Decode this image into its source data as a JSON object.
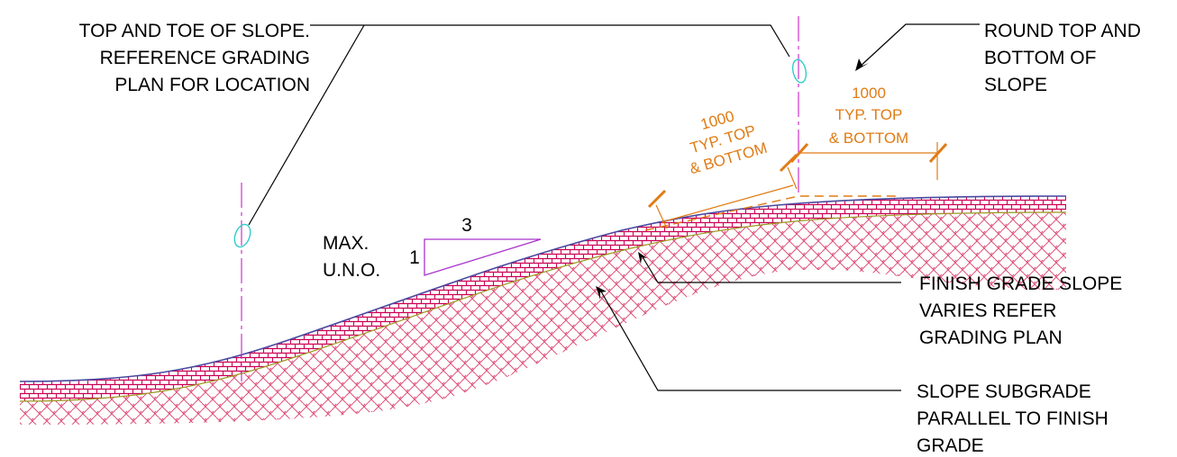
{
  "colors": {
    "text": "#000000",
    "dimension": "#e07b14",
    "centerline": "#cc33cc",
    "marker": "#33cccc",
    "hatch_fine": "#cc0055",
    "hatch_coarse": "#e0507a",
    "topsoil_edge": "#4a4aa0",
    "subgrade_edge": "#9a9a20"
  },
  "labels": {
    "top_toe": [
      "TOP AND TOE OF SLOPE.",
      "REFERENCE GRADING",
      "PLAN FOR LOCATION"
    ],
    "round_top": [
      "ROUND TOP AND",
      "BOTTOM OF",
      "SLOPE"
    ],
    "finish_grade": [
      "FINISH GRADE SLOPE",
      "VARIES REFER",
      "GRADING PLAN"
    ],
    "subgrade": [
      "SLOPE SUBGRADE",
      "PARALLEL TO FINISH",
      "GRADE"
    ],
    "max_uno": [
      "MAX.",
      "U.N.O."
    ]
  },
  "slope_ratio": {
    "run": "3",
    "rise": "1"
  },
  "dimensions": {
    "slope_dim": [
      "1000",
      "TYP. TOP",
      "& BOTTOM"
    ],
    "top_dim": [
      "1000",
      "TYP. TOP",
      "& BOTTOM"
    ]
  },
  "icons": {
    "markers": "ellipse-marker-icon",
    "arrows": "leader-arrowhead-icon",
    "ticks": "dimension-tick-icon"
  }
}
